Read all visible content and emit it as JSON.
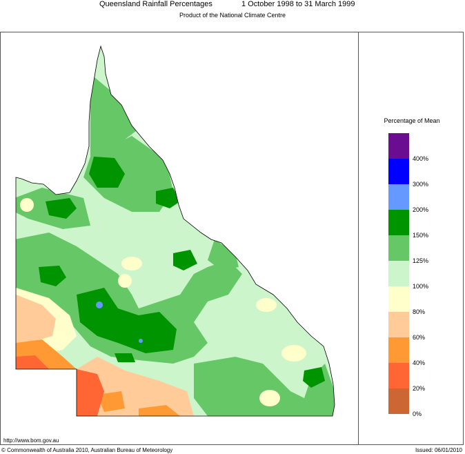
{
  "header": {
    "title_left": "Queensland Rainfall Percentages",
    "title_right": "1 October 1998 to 31 March 1999",
    "subtitle": "Product of the National Climate Centre"
  },
  "legend": {
    "title": "Percentage of Mean",
    "bins": [
      {
        "color": "#6a0d91"
      },
      {
        "color": "#0000ff"
      },
      {
        "color": "#6699ff"
      },
      {
        "color": "#009400"
      },
      {
        "color": "#66c766"
      },
      {
        "color": "#ccf5cc"
      },
      {
        "color": "#ffffcc"
      },
      {
        "color": "#ffcc99"
      },
      {
        "color": "#ff9933"
      },
      {
        "color": "#ff6633"
      },
      {
        "color": "#cc6633"
      }
    ],
    "ticks": [
      "400%",
      "300%",
      "200%",
      "150%",
      "125%",
      "100%",
      "80%",
      "60%",
      "40%",
      "20%",
      "0%"
    ]
  },
  "footer": {
    "url": "http://www.bom.gov.au",
    "copyright": "© Commonwealth of Australia 2010, Australian Bureau of Meteorology",
    "issued": "Issued: 06/01/2010"
  }
}
